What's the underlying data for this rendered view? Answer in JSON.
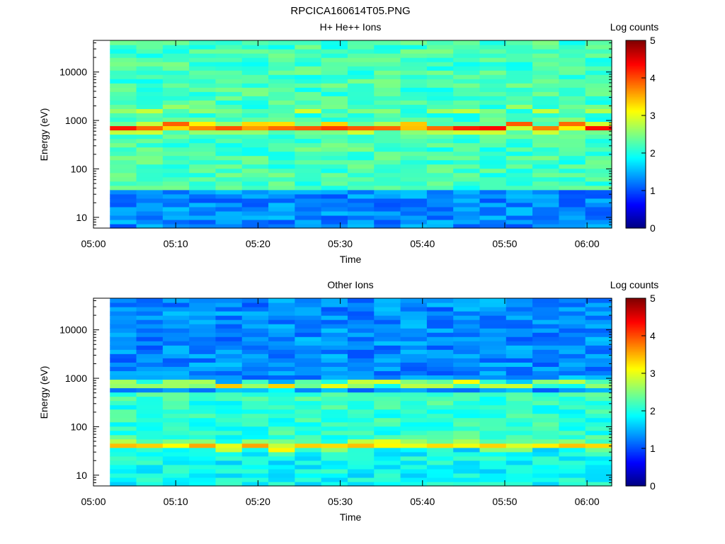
{
  "figure": {
    "title": "RPCICA160614T05.PNG"
  },
  "chart_data": [
    {
      "type": "heatmap",
      "title": "H+ He++ Ions",
      "xlabel": "Time",
      "ylabel": "Energy (eV)",
      "x_range": [
        "05:00",
        "06:03"
      ],
      "x_ticks": [
        "05:00",
        "05:10",
        "05:20",
        "05:30",
        "05:40",
        "05:50",
        "06:00"
      ],
      "y_scale": "log",
      "y_range": [
        6,
        45000
      ],
      "y_ticks": [
        10,
        100,
        1000,
        10000
      ],
      "y_tick_labels": [
        "10",
        "100",
        "1000",
        "10000"
      ],
      "data_start": "05:02",
      "time_bins": 19,
      "colorbar": {
        "label": "Log counts",
        "range": [
          0,
          5
        ],
        "ticks": [
          "0",
          "1",
          "2",
          "3",
          "4",
          "5"
        ],
        "colormap": "jet"
      },
      "background_log_counts": 2.2,
      "bands": [
        {
          "energy_eV": 750,
          "width_decades": 0.05,
          "peak_log_counts": 4.1
        },
        {
          "energy_eV": 1700,
          "width_decades": 0.02,
          "peak_log_counts": 2.7
        },
        {
          "energy_eV": 45,
          "width_decades": 0.03,
          "peak_log_counts": 2.2
        }
      ],
      "low_energy_below_eV": 35,
      "low_energy_log_counts": 1.3
    },
    {
      "type": "heatmap",
      "title": "Other Ions",
      "xlabel": "Time",
      "ylabel": "Energy (eV)",
      "x_range": [
        "05:00",
        "06:03"
      ],
      "x_ticks": [
        "05:00",
        "05:10",
        "05:20",
        "05:30",
        "05:40",
        "05:50",
        "06:00"
      ],
      "y_scale": "log",
      "y_range": [
        6,
        45000
      ],
      "y_ticks": [
        10,
        100,
        1000,
        10000
      ],
      "y_tick_labels": [
        "10",
        "100",
        "1000",
        "10000"
      ],
      "data_start": "05:02",
      "time_bins": 19,
      "colorbar": {
        "label": "Log counts",
        "range": [
          0,
          5
        ],
        "ticks": [
          "0",
          "1",
          "2",
          "3",
          "4",
          "5"
        ],
        "colormap": "jet"
      },
      "background_log_counts": 1.3,
      "bands": [
        {
          "energy_eV": 750,
          "width_decades": 0.05,
          "peak_log_counts": 3.1
        },
        {
          "energy_eV": 40,
          "width_decades": 0.06,
          "peak_log_counts": 3.3
        }
      ],
      "mid_energy_range_eV": [
        50,
        500
      ],
      "mid_energy_log_counts": 2.1,
      "low_energy_below_eV": 30,
      "low_energy_log_counts": 1.9
    }
  ]
}
